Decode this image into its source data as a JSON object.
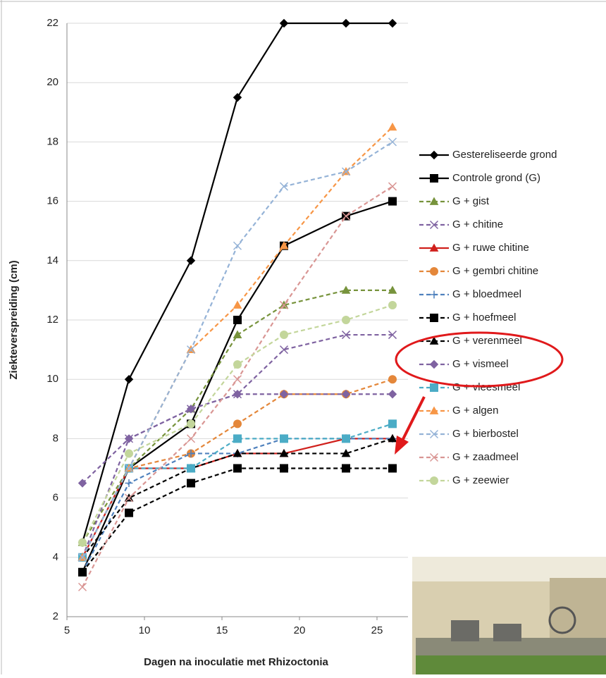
{
  "chart_data": {
    "type": "line",
    "xlabel": "Dagen na inoculatie met Rhizoctonia",
    "ylabel": "Ziekteverspreiding (cm)",
    "x": [
      6,
      9,
      13,
      16,
      19,
      23,
      26
    ],
    "xlim": [
      5,
      27
    ],
    "xticks": [
      5,
      10,
      15,
      20,
      25
    ],
    "ylim": [
      2,
      22
    ],
    "yticks": [
      2,
      4,
      6,
      8,
      10,
      12,
      14,
      16,
      18,
      20,
      22
    ],
    "legend": "right",
    "series": [
      {
        "name": "Gestereliseerde grond",
        "color": "#000000",
        "marker": "diamond",
        "dashed": false,
        "values": [
          4.5,
          10,
          14,
          19.5,
          22,
          22,
          22
        ]
      },
      {
        "name": "Controle grond (G)",
        "color": "#000000",
        "marker": "square",
        "dashed": false,
        "values": [
          3.5,
          7,
          8.5,
          12,
          14.5,
          15.5,
          16
        ]
      },
      {
        "name": "G + gist",
        "color": "#77933c",
        "marker": "triangle",
        "dashed": true,
        "values": [
          4.5,
          7,
          9,
          11.5,
          12.5,
          13,
          13
        ]
      },
      {
        "name": "G + chitine",
        "color": "#7f63a1",
        "marker": "x",
        "dashed": true,
        "values": [
          4,
          8,
          9,
          9.5,
          11,
          11.5,
          11.5
        ]
      },
      {
        "name": "G + ruwe chitine",
        "color": "#d0201c",
        "marker": "triangle",
        "dashed": false,
        "values": [
          4,
          7,
          7,
          7.5,
          7.5,
          8,
          8
        ]
      },
      {
        "name": "G + gembri chitine",
        "color": "#e4873a",
        "marker": "circle",
        "dashed": true,
        "values": [
          4,
          7,
          7.5,
          8.5,
          9.5,
          9.5,
          10
        ]
      },
      {
        "name": "G + bloedmeel",
        "color": "#4f81bd",
        "marker": "plus",
        "dashed": true,
        "values": [
          3.5,
          6.5,
          7.5,
          7.5,
          8,
          8,
          8
        ]
      },
      {
        "name": "G + hoefmeel",
        "color": "#000000",
        "marker": "square",
        "dashed": true,
        "values": [
          3.5,
          5.5,
          6.5,
          7,
          7,
          7,
          7
        ]
      },
      {
        "name": "G + verenmeel",
        "color": "#000000",
        "marker": "triangle",
        "dashed": true,
        "values": [
          4,
          6,
          7,
          7.5,
          7.5,
          7.5,
          8
        ]
      },
      {
        "name": "G + vismeel",
        "color": "#7f63a1",
        "marker": "diamond",
        "dashed": true,
        "values": [
          6.5,
          8,
          9,
          9.5,
          9.5,
          9.5,
          9.5
        ]
      },
      {
        "name": "G + vleesmeel",
        "color": "#4bacc6",
        "marker": "square",
        "dashed": true,
        "values": [
          4,
          7,
          7,
          8,
          8,
          8,
          8.5
        ]
      },
      {
        "name": "G + algen",
        "color": "#f79646",
        "marker": "triangle",
        "dashed": true,
        "values": [
          4,
          7,
          11,
          12.5,
          14.5,
          17,
          18.5
        ]
      },
      {
        "name": "G + bierbostel",
        "color": "#95b3d7",
        "marker": "x",
        "dashed": true,
        "values": [
          4,
          7,
          11,
          14.5,
          16.5,
          17,
          18
        ]
      },
      {
        "name": "G + zaadmeel",
        "color": "#d99694",
        "marker": "x",
        "dashed": true,
        "values": [
          3,
          6,
          8,
          10,
          12.5,
          15.5,
          16.5
        ]
      },
      {
        "name": "G + zeewier",
        "color": "#c3d69b",
        "marker": "circle",
        "dashed": true,
        "values": [
          4.5,
          7.5,
          8.5,
          10.5,
          11.5,
          12,
          12.5
        ]
      }
    ]
  }
}
